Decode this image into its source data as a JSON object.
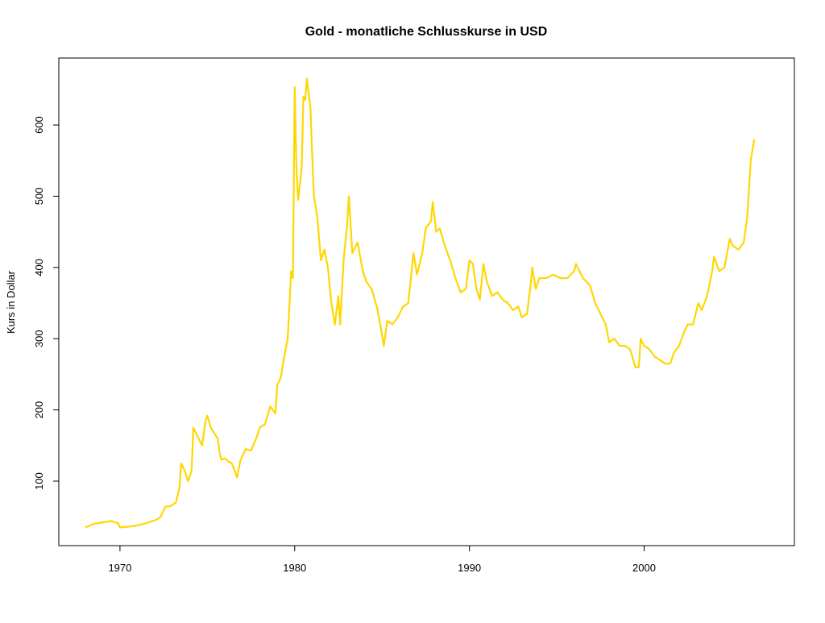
{
  "chart_data": {
    "type": "line",
    "title": "Gold  - monatliche Schlusskurse in USD",
    "ylabel": "Kurs in Dollar",
    "color": "#FFD700",
    "xlim": [
      1966.5,
      2008.6
    ],
    "xticks": [
      1970,
      1980,
      1990,
      2000
    ],
    "ylim": [
      9.5,
      694
    ],
    "yticks": [
      100,
      200,
      300,
      400,
      500,
      600
    ],
    "x": [
      1968.0,
      1968.5,
      1969.0,
      1969.5,
      1969.9,
      1970.0,
      1970.5,
      1971.0,
      1971.5,
      1972.0,
      1972.3,
      1972.6,
      1972.9,
      1973.2,
      1973.4,
      1973.5,
      1973.7,
      1973.9,
      1974.1,
      1974.2,
      1974.5,
      1974.7,
      1974.9,
      1975.0,
      1975.2,
      1975.4,
      1975.6,
      1975.7,
      1975.8,
      1976.0,
      1976.2,
      1976.4,
      1976.6,
      1976.7,
      1976.9,
      1977.2,
      1977.5,
      1977.8,
      1978.0,
      1978.3,
      1978.6,
      1978.9,
      1979.0,
      1979.2,
      1979.4,
      1979.6,
      1979.8,
      1979.9,
      1980.0,
      1980.1,
      1980.2,
      1980.4,
      1980.5,
      1980.6,
      1980.7,
      1980.9,
      1981.0,
      1981.1,
      1981.3,
      1981.5,
      1981.7,
      1981.9,
      1982.1,
      1982.3,
      1982.5,
      1982.6,
      1982.8,
      1983.0,
      1983.1,
      1983.3,
      1983.6,
      1983.9,
      1984.1,
      1984.4,
      1984.7,
      1984.9,
      1985.1,
      1985.3,
      1985.6,
      1985.9,
      1986.2,
      1986.5,
      1986.8,
      1987.0,
      1987.3,
      1987.5,
      1987.8,
      1987.9,
      1988.1,
      1988.3,
      1988.6,
      1988.9,
      1989.2,
      1989.5,
      1989.8,
      1990.0,
      1990.2,
      1990.4,
      1990.6,
      1990.8,
      1991.0,
      1991.3,
      1991.6,
      1991.9,
      1992.2,
      1992.5,
      1992.8,
      1993.0,
      1993.3,
      1993.5,
      1993.6,
      1993.8,
      1994.0,
      1994.4,
      1994.8,
      1995.2,
      1995.6,
      1996.0,
      1996.1,
      1996.5,
      1996.9,
      1997.2,
      1997.5,
      1997.8,
      1998.0,
      1998.3,
      1998.6,
      1998.9,
      1999.2,
      1999.5,
      1999.7,
      1999.8,
      2000.0,
      2000.3,
      2000.6,
      2000.9,
      2001.2,
      2001.5,
      2001.7,
      2002.0,
      2002.3,
      2002.5,
      2002.8,
      2003.1,
      2003.3,
      2003.6,
      2003.9,
      2004.0,
      2004.3,
      2004.6,
      2004.9,
      2005.1,
      2005.4,
      2005.7,
      2005.9,
      2006.1,
      2006.3
    ],
    "values": [
      35,
      40,
      42,
      44,
      41,
      35,
      36,
      38,
      41,
      45,
      49,
      64,
      65,
      70,
      90,
      125,
      115,
      100,
      115,
      175,
      160,
      150,
      185,
      192,
      175,
      167,
      160,
      140,
      130,
      132,
      128,
      125,
      112,
      105,
      130,
      145,
      143,
      160,
      175,
      180,
      205,
      195,
      235,
      245,
      275,
      300,
      395,
      385,
      653,
      540,
      495,
      540,
      640,
      635,
      665,
      625,
      560,
      500,
      470,
      410,
      425,
      400,
      350,
      320,
      360,
      320,
      410,
      460,
      500,
      420,
      435,
      395,
      380,
      370,
      345,
      320,
      290,
      325,
      320,
      330,
      345,
      350,
      420,
      390,
      420,
      455,
      465,
      492,
      450,
      455,
      430,
      410,
      385,
      365,
      370,
      410,
      405,
      370,
      355,
      405,
      380,
      360,
      365,
      355,
      350,
      340,
      345,
      330,
      335,
      375,
      400,
      370,
      385,
      385,
      390,
      385,
      385,
      395,
      405,
      385,
      375,
      350,
      335,
      320,
      295,
      300,
      290,
      290,
      285,
      260,
      260,
      300,
      290,
      285,
      275,
      270,
      265,
      265,
      280,
      290,
      310,
      320,
      320,
      350,
      340,
      360,
      395,
      415,
      395,
      400,
      440,
      430,
      425,
      435,
      470,
      550,
      580
    ]
  }
}
